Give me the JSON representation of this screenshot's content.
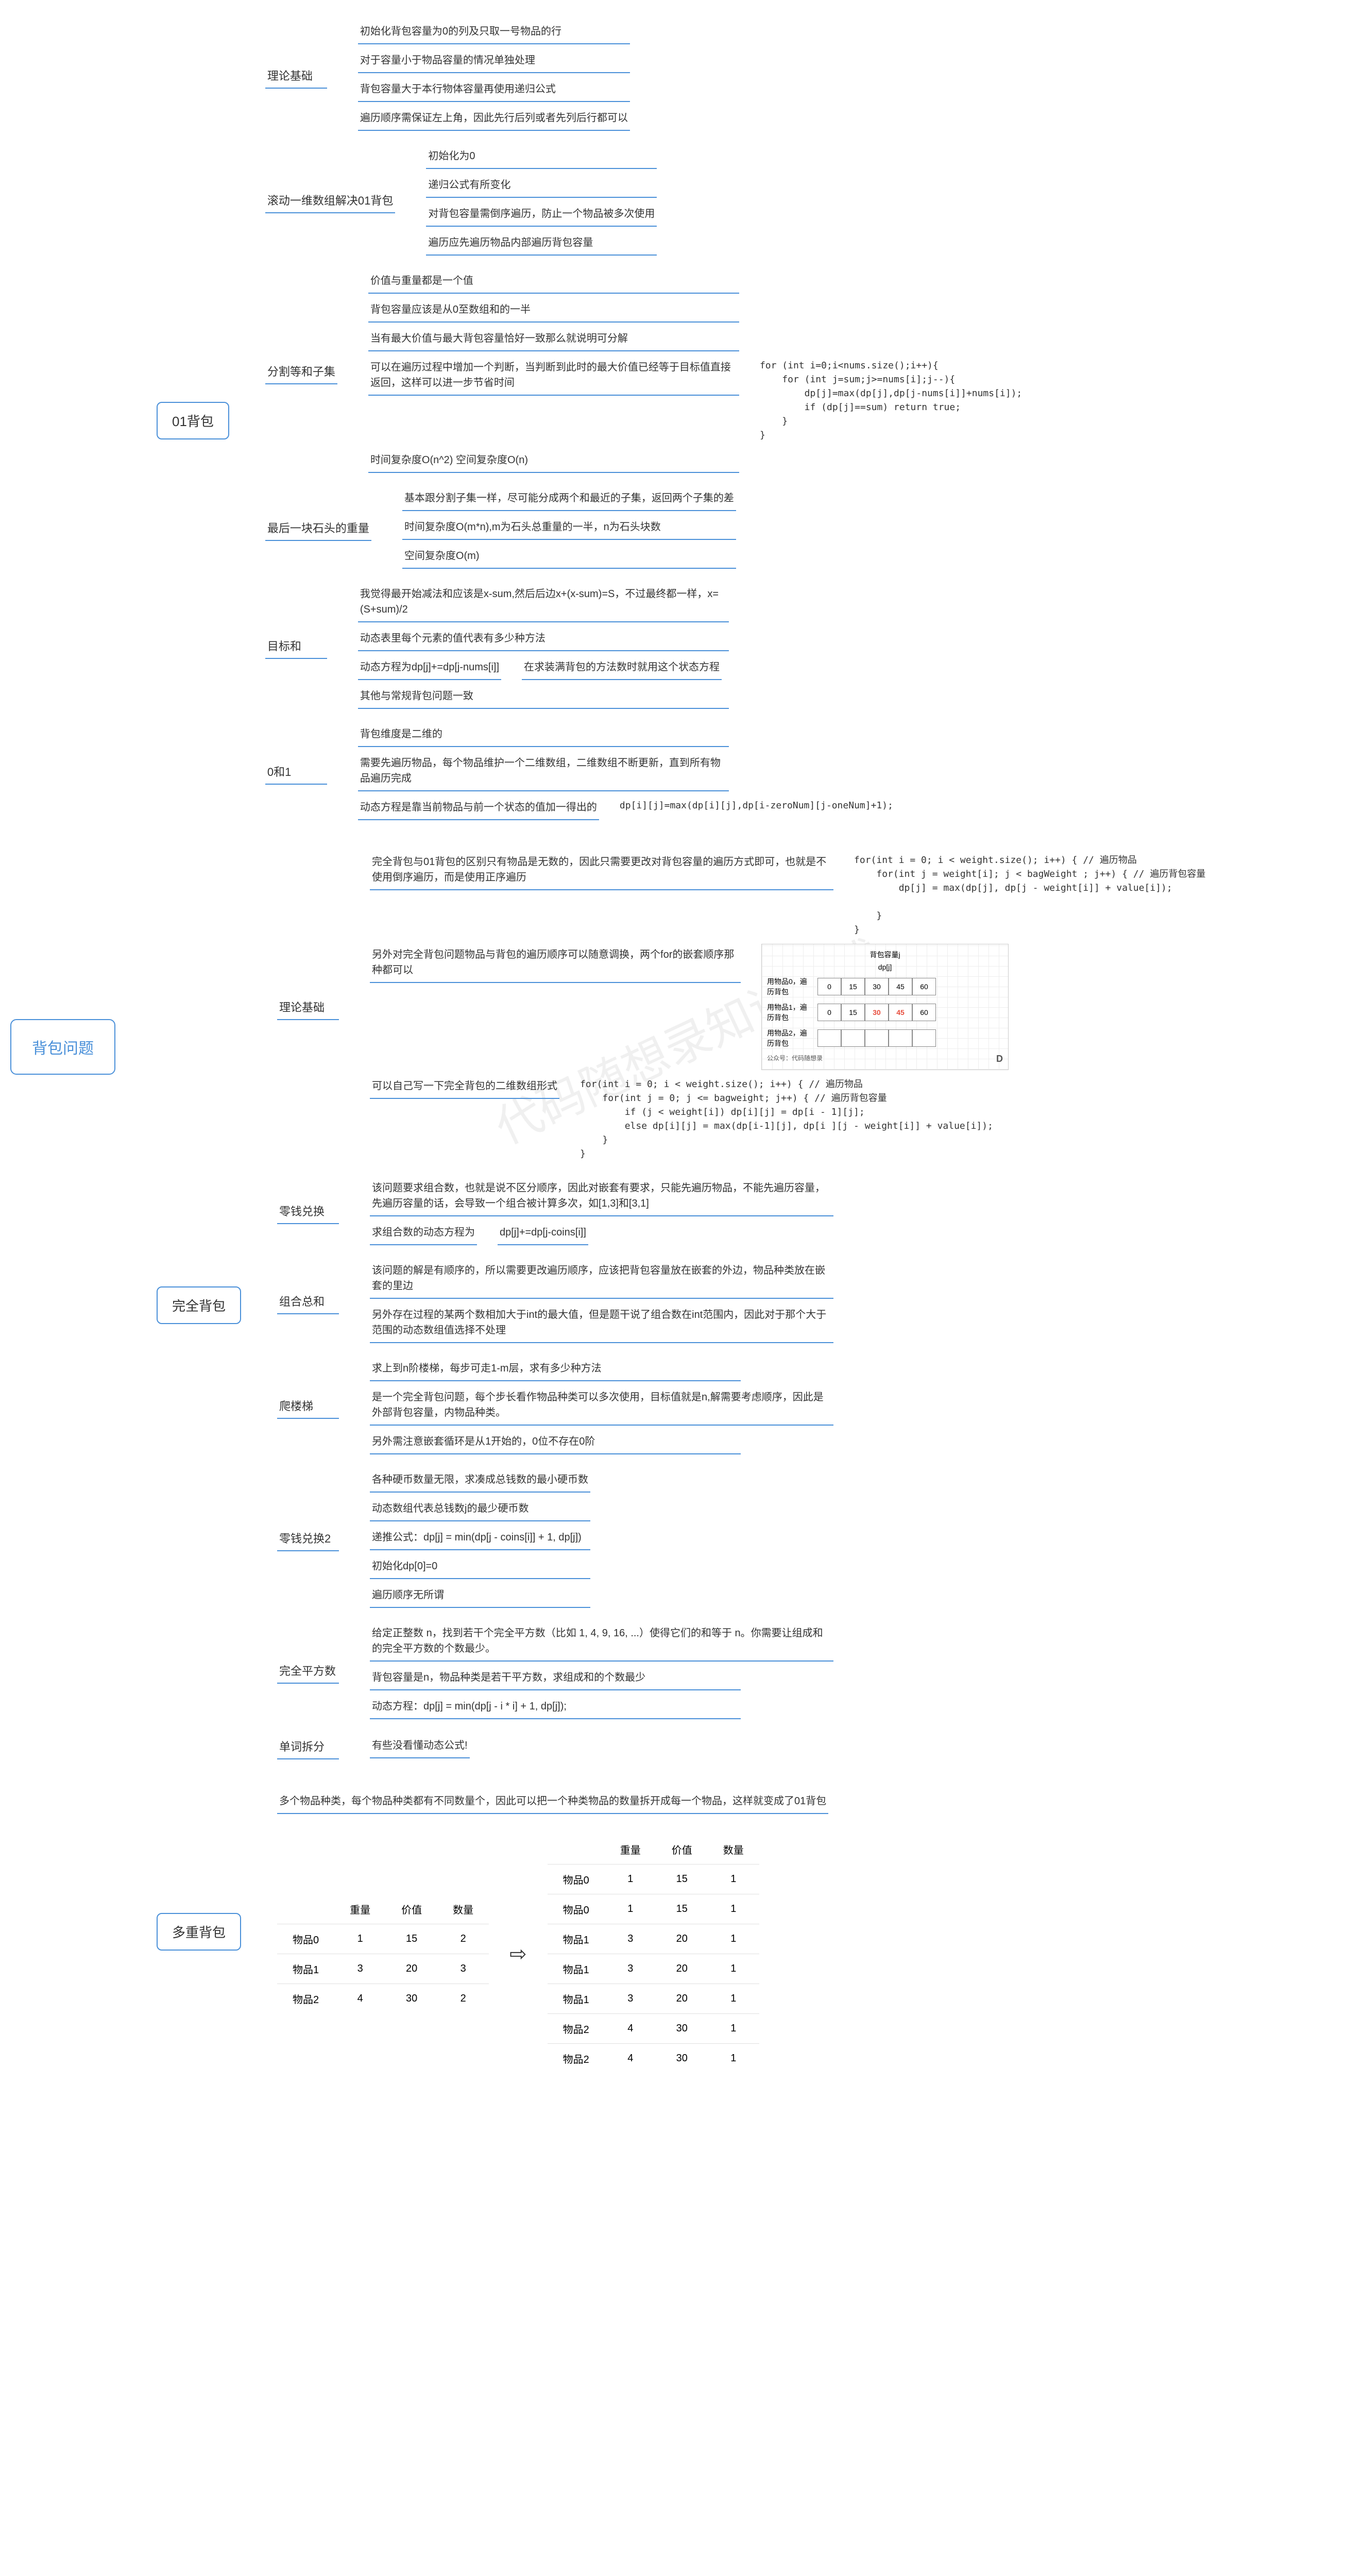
{
  "root": "背包问题",
  "branch1": {
    "label": "01背包",
    "sub1": {
      "label": "理论基础",
      "leaves": [
        "初始化背包容量为0的列及只取一号物品的行",
        "对于容量小于物品容量的情况单独处理",
        "背包容量大于本行物体容量再使用递归公式",
        "遍历顺序需保证左上角，因此先行后列或者先列后行都可以"
      ]
    },
    "sub2": {
      "label": "滚动一维数组解决01背包",
      "leaves": [
        "初始化为0",
        "递归公式有所变化",
        "对背包容量需倒序遍历，防止一个物品被多次使用",
        "遍历应先遍历物品内部遍历背包容量"
      ]
    },
    "sub3": {
      "label": "分割等和子集",
      "leaves": {
        "a": "价值与重量都是一个值",
        "b": "背包容量应该是从0至数组和的一半",
        "c": "当有最大价值与最大背包容量恰好一致那么就说明可分解",
        "d": "可以在遍历过程中增加一个判断，当判断到此时的最大价值已经等于目标值直接返回，这样可以进一步节省时间",
        "e": "时间复杂度O(n^2) 空间复杂度O(n)"
      },
      "code": "for (int i=0;i<nums.size();i++){\n    for (int j=sum;j>=nums[i];j--){\n        dp[j]=max(dp[j],dp[j-nums[i]]+nums[i]);\n        if (dp[j]==sum) return true;\n    }\n}"
    },
    "sub4": {
      "label": "最后一块石头的重量",
      "leaves": [
        "基本跟分割子集一样，尽可能分成两个和最近的子集，返回两个子集的差",
        "时间复杂度O(m*n),m为石头总重量的一半，n为石头块数",
        "空间复杂度O(m)"
      ]
    },
    "sub5": {
      "label": "目标和",
      "leaves": {
        "a": "我觉得最开始减法和应该是x-sum,然后后边x+(x-sum)=S，不过最终都一样，x=(S+sum)/2",
        "b": "动态表里每个元素的值代表有多少种方法",
        "c": "动态方程为dp[j]+=dp[j-nums[i]]",
        "c_note": "在求装满背包的方法数时就用这个状态方程",
        "d": "其他与常规背包问题一致"
      }
    },
    "sub6": {
      "label": "0和1",
      "leaves": {
        "a": "背包维度是二维的",
        "b": "需要先遍历物品，每个物品维护一个二维数组，二维数组不断更新，直到所有物品遍历完成",
        "c": "动态方程是靠当前物品与前一个状态的值加一得出的",
        "c_code": "dp[i][j]=max(dp[i][j],dp[i-zeroNum][j-oneNum]+1);"
      }
    }
  },
  "branch2": {
    "label": "完全背包",
    "sub1": {
      "label": "理论基础",
      "leaves": {
        "a": "完全背包与01背包的区别只有物品是无数的，因此只需要更改对背包容量的遍历方式即可，也就是不使用倒序遍历，而是使用正序遍历",
        "a_code": "for(int i = 0; i < weight.size(); i++) { // 遍历物品\n    for(int j = weight[i]; j < bagWeight ; j++) { // 遍历背包容量\n        dp[j] = max(dp[j], dp[j - weight[i]] + value[i]);\n\n    }\n}",
        "b": "另外对完全背包问题物品与背包的遍历顺序可以随意调换，两个for的嵌套顺序那种都可以",
        "c": "可以自己写一下完全背包的二维数组形式",
        "c_code": "for(int i = 0; i < weight.size(); i++) { // 遍历物品\n    for(int j = 0; j <= bagweight; j++) { // 遍历背包容量\n        if (j < weight[i]) dp[i][j] = dp[i - 1][j];\n        else dp[i][j] = max(dp[i-1][j], dp[i ][j - weight[i]] + value[i]);\n    }\n}"
      },
      "diagram": {
        "title_top": "背包容量j",
        "dp_label": "dp[j]",
        "rows": [
          {
            "label": "用物品0，遍历背包",
            "cells": [
              "0",
              "15",
              "30",
              "45",
              "60"
            ]
          },
          {
            "label": "用物品1，遍历背包",
            "cells": [
              "0",
              "15",
              "30",
              "45",
              "60"
            ],
            "hl": [
              2,
              3
            ]
          },
          {
            "label": "用物品2，遍历背包",
            "cells": [
              "",
              "",
              "",
              "",
              ""
            ]
          }
        ],
        "footer_left": "公众号：代码随想录",
        "footer_right": "D"
      }
    },
    "sub2": {
      "label": "零钱兑换",
      "leaves": {
        "a": "该问题要求组合数，也就是说不区分顺序，因此对嵌套有要求，只能先遍历物品，不能先遍历容量，先遍历容量的话，会导致一个组合被计算多次，如[1,3]和[3,1]",
        "b": "求组合数的动态方程为",
        "b_code": "dp[j]+=dp[j-coins[i]]"
      }
    },
    "sub3": {
      "label": "组合总和",
      "leaves": [
        "该问题的解是有顺序的，所以需要更改遍历顺序，应该把背包容量放在嵌套的外边，物品种类放在嵌套的里边",
        "另外存在过程的某两个数相加大于int的最大值，但是题干说了组合数在int范围内，因此对于那个大于范围的动态数组值选择不处理"
      ]
    },
    "sub4": {
      "label": "爬楼梯",
      "leaves": [
        "求上到n阶楼梯，每步可走1-m层，求有多少种方法",
        "是一个完全背包问题，每个步长看作物品种类可以多次使用，目标值就是n,解需要考虑顺序，因此是外部背包容量，内物品种类。",
        "另外需注意嵌套循环是从1开始的，0位不存在0阶"
      ]
    },
    "sub5": {
      "label": "零钱兑换2",
      "leaves": [
        "各种硬币数量无限，求凑成总钱数的最小硬币数",
        "动态数组代表总钱数j的最少硬币数",
        "递推公式：dp[j] = min(dp[j - coins[i]] + 1, dp[j])",
        "初始化dp[0]=0",
        "遍历顺序无所谓"
      ]
    },
    "sub6": {
      "label": "完全平方数",
      "leaves": [
        "给定正整数 n，找到若干个完全平方数（比如 1, 4, 9, 16, ...）使得它们的和等于 n。你需要让组成和的完全平方数的个数最少。",
        "背包容量是n，物品种类是若干平方数，求组成和的个数最少",
        "动态方程：dp[j] = min(dp[j - i * i] + 1, dp[j]);"
      ]
    },
    "sub7": {
      "label": "单词拆分",
      "leaves": [
        "有些没看懂动态公式!"
      ]
    }
  },
  "branch3": {
    "label": "多重背包",
    "intro": "多个物品种类，每个物品种类都有不同数量个，因此可以把一个种类物品的数量拆开成每一个物品，这样就变成了01背包",
    "table_before": {
      "headers": [
        "",
        "重量",
        "价值",
        "数量"
      ],
      "rows": [
        [
          "物品0",
          "1",
          "15",
          "2"
        ],
        [
          "物品1",
          "3",
          "20",
          "3"
        ],
        [
          "物品2",
          "4",
          "30",
          "2"
        ]
      ]
    },
    "table_after": {
      "headers": [
        "",
        "重量",
        "价值",
        "数量"
      ],
      "rows": [
        [
          "物品0",
          "1",
          "15",
          "1"
        ],
        [
          "物品0",
          "1",
          "15",
          "1"
        ],
        [
          "物品1",
          "3",
          "20",
          "1"
        ],
        [
          "物品1",
          "3",
          "20",
          "1"
        ],
        [
          "物品1",
          "3",
          "20",
          "1"
        ],
        [
          "物品2",
          "4",
          "30",
          "1"
        ],
        [
          "物品2",
          "4",
          "30",
          "1"
        ]
      ]
    }
  },
  "colors": {
    "border": "#4a90d9",
    "text": "#333333",
    "bg": "#ffffff"
  }
}
